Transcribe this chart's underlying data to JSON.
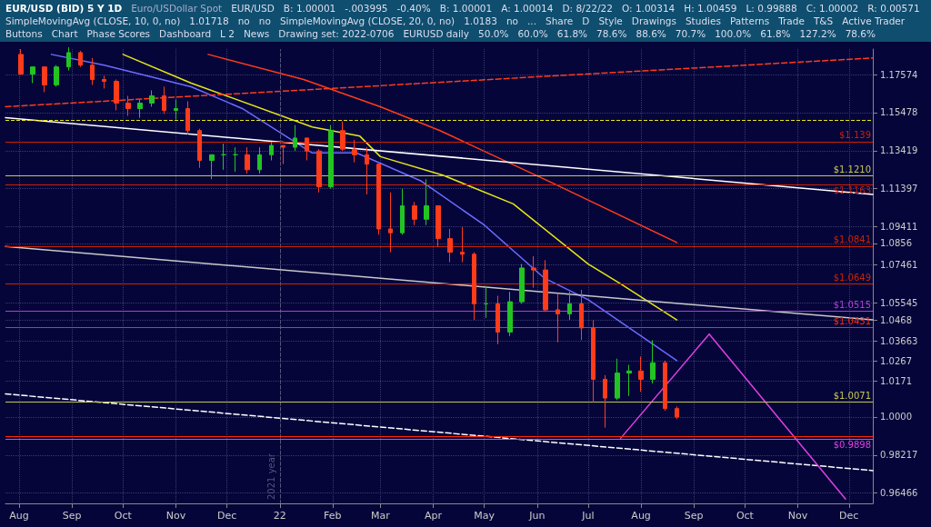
{
  "chart_data": {
    "type": "candlestick",
    "title": "EUR/USD (BID) 5 Y 1D",
    "subtitle": "Euro/USDollar Spot",
    "x": [
      "2021-08-02",
      "2021-08-09",
      "2021-08-16",
      "2021-08-23",
      "2021-08-30",
      "2021-09-06",
      "2021-09-13",
      "2021-09-20",
      "2021-09-27",
      "2021-10-04",
      "2021-10-11",
      "2021-10-18",
      "2021-10-25",
      "2021-11-01",
      "2021-11-08",
      "2021-11-15",
      "2021-11-22",
      "2021-11-29",
      "2021-12-06",
      "2021-12-13",
      "2021-12-20",
      "2021-12-27",
      "2022-01-03",
      "2022-01-10",
      "2022-01-17",
      "2022-01-24",
      "2022-01-31",
      "2022-02-07",
      "2022-02-14",
      "2022-02-21",
      "2022-02-28",
      "2022-03-07",
      "2022-03-14",
      "2022-03-21",
      "2022-03-28",
      "2022-04-04",
      "2022-04-11",
      "2022-04-18",
      "2022-04-25",
      "2022-05-02",
      "2022-05-09",
      "2022-05-16",
      "2022-05-23",
      "2022-05-30",
      "2022-06-06",
      "2022-06-13",
      "2022-06-20",
      "2022-06-27",
      "2022-07-04",
      "2022-07-11",
      "2022-07-18",
      "2022-07-25",
      "2022-08-01",
      "2022-08-08",
      "2022-08-15",
      "2022-08-22"
    ],
    "ohlc": [
      [
        1.187,
        1.19,
        1.176,
        1.176
      ],
      [
        1.176,
        1.18,
        1.171,
        1.18
      ],
      [
        1.18,
        1.18,
        1.166,
        1.17
      ],
      [
        1.17,
        1.181,
        1.169,
        1.18
      ],
      [
        1.18,
        1.191,
        1.178,
        1.188
      ],
      [
        1.188,
        1.189,
        1.18,
        1.181
      ],
      [
        1.181,
        1.185,
        1.17,
        1.173
      ],
      [
        1.173,
        1.175,
        1.168,
        1.172
      ],
      [
        1.172,
        1.173,
        1.156,
        1.16
      ],
      [
        1.16,
        1.164,
        1.153,
        1.157
      ],
      [
        1.157,
        1.162,
        1.152,
        1.16
      ],
      [
        1.16,
        1.167,
        1.158,
        1.164
      ],
      [
        1.164,
        1.169,
        1.154,
        1.156
      ],
      [
        1.156,
        1.162,
        1.151,
        1.157
      ],
      [
        1.157,
        1.161,
        1.143,
        1.145
      ],
      [
        1.145,
        1.146,
        1.125,
        1.129
      ],
      [
        1.129,
        1.132,
        1.119,
        1.132
      ],
      [
        1.132,
        1.138,
        1.124,
        1.132
      ],
      [
        1.132,
        1.136,
        1.123,
        1.132
      ],
      [
        1.132,
        1.136,
        1.122,
        1.124
      ],
      [
        1.124,
        1.136,
        1.122,
        1.132
      ],
      [
        1.132,
        1.139,
        1.129,
        1.137
      ],
      [
        1.137,
        1.137,
        1.127,
        1.136
      ],
      [
        1.136,
        1.148,
        1.134,
        1.141
      ],
      [
        1.141,
        1.141,
        1.129,
        1.134
      ],
      [
        1.134,
        1.135,
        1.112,
        1.115
      ],
      [
        1.115,
        1.148,
        1.114,
        1.145
      ],
      [
        1.145,
        1.15,
        1.134,
        1.135
      ],
      [
        1.135,
        1.14,
        1.128,
        1.132
      ],
      [
        1.132,
        1.136,
        1.111,
        1.127
      ],
      [
        1.127,
        1.127,
        1.09,
        1.093
      ],
      [
        1.093,
        1.112,
        1.081,
        1.091
      ],
      [
        1.091,
        1.114,
        1.09,
        1.105
      ],
      [
        1.105,
        1.107,
        1.095,
        1.098
      ],
      [
        1.098,
        1.119,
        1.095,
        1.105
      ],
      [
        1.105,
        1.105,
        1.084,
        1.088
      ],
      [
        1.088,
        1.093,
        1.076,
        1.081
      ],
      [
        1.081,
        1.094,
        1.076,
        1.08
      ],
      [
        1.08,
        1.081,
        1.047,
        1.055
      ],
      [
        1.055,
        1.064,
        1.048,
        1.055
      ],
      [
        1.055,
        1.059,
        1.035,
        1.041
      ],
      [
        1.041,
        1.061,
        1.039,
        1.056
      ],
      [
        1.056,
        1.075,
        1.055,
        1.073
      ],
      [
        1.073,
        1.079,
        1.063,
        1.072
      ],
      [
        1.072,
        1.077,
        1.051,
        1.052
      ],
      [
        1.052,
        1.06,
        1.036,
        1.05
      ],
      [
        1.05,
        1.061,
        1.047,
        1.055
      ],
      [
        1.055,
        1.062,
        1.037,
        1.043
      ],
      [
        1.043,
        1.047,
        1.007,
        1.018
      ],
      [
        1.018,
        1.02,
        0.995,
        1.009
      ],
      [
        1.009,
        1.028,
        1.008,
        1.021
      ],
      [
        1.021,
        1.025,
        1.01,
        1.022
      ],
      [
        1.022,
        1.029,
        1.012,
        1.018
      ],
      [
        1.018,
        1.037,
        1.016,
        1.026
      ],
      [
        1.026,
        1.027,
        1.003,
        1.004
      ],
      [
        1.004,
        1.005,
        0.999,
        1.0
      ]
    ],
    "series": [
      {
        "type": "line",
        "color": "#ff3b1a",
        "line_style": "solid",
        "x": [
          "2021-11-20",
          "2022-01-15",
          "2022-03-01",
          "2022-04-05",
          "2022-06-10",
          "2022-08-22"
        ],
        "values": [
          1.187,
          1.173,
          1.158,
          1.145,
          1.117,
          1.086
        ]
      },
      {
        "type": "line",
        "color": "#e6e619",
        "line_style": "solid",
        "x": [
          "2021-10-01",
          "2021-11-10",
          "2022-01-20",
          "2022-02-17",
          "2022-03-01",
          "2022-04-07",
          "2022-05-18",
          "2022-07-01",
          "2022-07-20",
          "2022-08-22"
        ],
        "values": [
          1.187,
          1.171,
          1.147,
          1.142,
          1.131,
          1.121,
          1.106,
          1.075,
          1.065,
          1.047
        ]
      },
      {
        "type": "line",
        "color": "#6b6bff",
        "line_style": "solid",
        "x": [
          "2021-08-20",
          "2021-09-20",
          "2021-11-10",
          "2021-12-10",
          "2022-01-20",
          "2022-02-15",
          "2022-03-25",
          "2022-05-01",
          "2022-06-05",
          "2022-07-01",
          "2022-08-22"
        ],
        "values": [
          1.187,
          1.181,
          1.169,
          1.157,
          1.133,
          1.133,
          1.118,
          1.095,
          1.068,
          1.057,
          1.027
        ]
      },
      {
        "type": "line",
        "color": "#ff3b1a",
        "line_style": "dashed",
        "x": [
          "2021-07-24",
          "2022-12-15"
        ],
        "values": [
          1.158,
          1.185
        ]
      },
      {
        "type": "line",
        "color": "#ffffff",
        "line_style": "dashed",
        "x": [
          "2021-07-24",
          "2022-12-15"
        ],
        "values": [
          1.011,
          0.975
        ]
      },
      {
        "type": "line",
        "color": "#ffffff",
        "line_style": "solid",
        "x": [
          "2021-07-24",
          "2022-12-15"
        ],
        "values": [
          1.152,
          1.111
        ]
      },
      {
        "type": "line",
        "color": "#c8c8c8",
        "line_style": "solid",
        "x": [
          "2021-07-24",
          "2022-12-15"
        ],
        "values": [
          1.084,
          1.047
        ]
      },
      {
        "type": "line",
        "color": "#e040e0",
        "line_style": "solid",
        "x": [
          "2022-07-20",
          "2022-09-10",
          "2022-11-29"
        ],
        "values": [
          0.99,
          1.04,
          0.962
        ]
      }
    ],
    "xlim": [
      "2021-07-24",
      "2022-12-15"
    ],
    "xticks": [
      {
        "value": "2021-08-01",
        "label": "Aug"
      },
      {
        "value": "2021-09-01",
        "label": "Sep"
      },
      {
        "value": "2021-10-01",
        "label": "Oct"
      },
      {
        "value": "2021-11-01",
        "label": "Nov"
      },
      {
        "value": "2021-12-01",
        "label": "Dec"
      },
      {
        "value": "2022-01-01",
        "label": "22"
      },
      {
        "value": "2022-02-01",
        "label": "Feb"
      },
      {
        "value": "2022-03-01",
        "label": "Mar"
      },
      {
        "value": "2022-04-01",
        "label": "Apr"
      },
      {
        "value": "2022-05-01",
        "label": "May"
      },
      {
        "value": "2022-06-01",
        "label": "Jun"
      },
      {
        "value": "2022-07-01",
        "label": "Jul"
      },
      {
        "value": "2022-08-01",
        "label": "Aug"
      },
      {
        "value": "2022-09-01",
        "label": "Sep"
      },
      {
        "value": "2022-10-01",
        "label": "Oct"
      },
      {
        "value": "2022-11-01",
        "label": "Nov"
      },
      {
        "value": "2022-12-01",
        "label": "Dec"
      }
    ],
    "ylim": [
      0.96,
      1.19
    ],
    "yticks": [
      0.96466,
      0.98217,
      {
        "value": 1.0,
        "label": "1.0000"
      },
      1.0171,
      1.0267,
      1.03663,
      1.0468,
      1.05545,
      1.07461,
      1.0856,
      1.09411,
      1.11397,
      1.13419,
      1.15478,
      1.17574
    ],
    "log": "y",
    "grid": true,
    "marker": "none",
    "ref_lines": [
      {
        "axis": "y",
        "value": 1.1508,
        "label": null,
        "color": "#e6e619",
        "line_style": "dashed"
      },
      {
        "axis": "y",
        "value": 1.139,
        "label": "$1.139",
        "color": "#cc2200",
        "line_style": "solid"
      },
      {
        "axis": "y",
        "value": 1.121,
        "label": "$1.1210",
        "color": "#c8c850",
        "line_style": "solid"
      },
      {
        "axis": "y",
        "value": 1.1163,
        "label": "$1.1163",
        "color": "#cc2200",
        "line_style": "solid"
      },
      {
        "axis": "y",
        "value": 1.0841,
        "label": "$1.0841",
        "color": "#cc2200",
        "line_style": "solid"
      },
      {
        "axis": "y",
        "value": 1.0649,
        "label": "$1.0649",
        "color": "#cc2200",
        "line_style": "solid"
      },
      {
        "axis": "y",
        "value": 1.0515,
        "label": "$1.0515",
        "color": "#b040d0",
        "line_style": "solid"
      },
      {
        "axis": "y",
        "value": 1.0431,
        "label": "$1.0431",
        "color": "#ff2a00",
        "line_style": "solid"
      },
      {
        "axis": "y",
        "value": 1.0071,
        "label": "$1.0071",
        "color": "#c8c850",
        "line_style": "solid"
      },
      {
        "axis": "y",
        "value": 0.991,
        "label": null,
        "color": "#ff2a00",
        "line_style": "solid"
      },
      {
        "axis": "y",
        "value": 0.9898,
        "label": "$0.9898",
        "color": "#e040e0",
        "line_style": "solid"
      },
      {
        "axis": "x",
        "value": "2022-01-01",
        "label": "2021 year",
        "color": "#555577",
        "line_style": "dashed"
      }
    ],
    "annotations": [
      "EUR/USD",
      "B: 1.00001",
      "-.003995",
      "-0.40%",
      "B: 1.00001",
      "A: 1.00014",
      "D: 8/22/22",
      "O: 1.00314",
      "H: 1.00459",
      "L: 0.99888",
      "C: 1.00002",
      "R: 0.00571",
      "SimpleMovingAvg (CLOSE, 10, 0, no)",
      "1.01718",
      "no",
      "no",
      "SimpleMovingAvg (CLOSE, 20, 0, no)",
      "1.0183",
      "no",
      "...",
      "Share",
      "D",
      "Style",
      "Drawings",
      "Studies",
      "Patterns",
      "Trade",
      "T&S",
      "Active Trader",
      "Buttons",
      "Chart",
      "Phase Scores",
      "Dashboard",
      "L 2",
      "News",
      "Drawing set: 2022-0706",
      "EURUSD daily",
      "50.0%",
      "60.0%",
      "61.8%",
      "78.6%",
      "88.6%",
      "70.7%",
      "100.0%",
      "61.8%",
      "127.2%",
      "78.6%"
    ]
  }
}
